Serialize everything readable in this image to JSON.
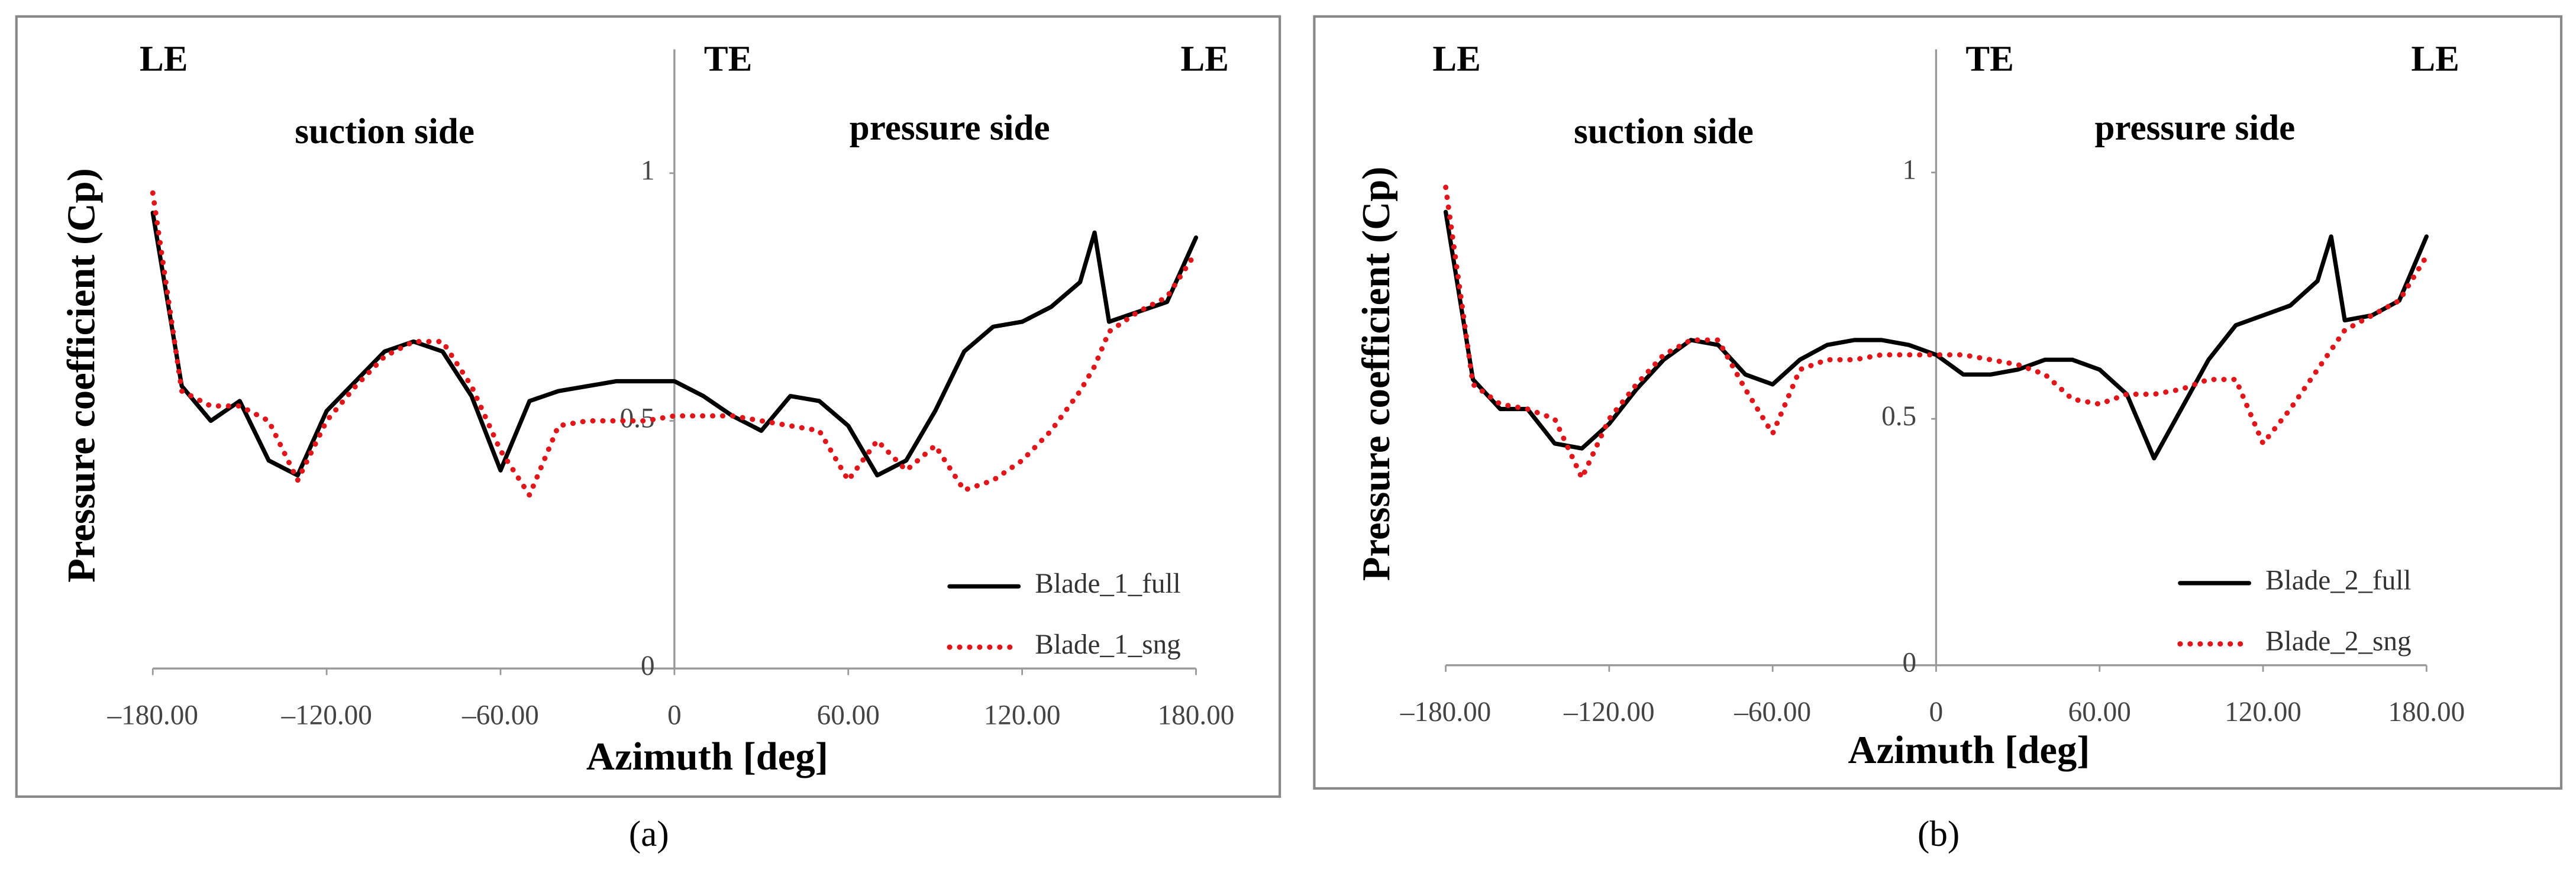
{
  "chart_data": [
    {
      "type": "line",
      "caption": "(a)",
      "x_label": "Azimuth [deg]",
      "y_label": "Pressure coefficient (Cp)",
      "annotations": [
        "LE",
        "TE",
        "LE",
        "suction side",
        "pressure side"
      ],
      "x": [
        -180,
        -170,
        -160,
        -150,
        -140,
        -130,
        -120,
        -110,
        -100,
        -90,
        -80,
        -70,
        -60,
        -50,
        -40,
        -30,
        -20,
        -10,
        0,
        10,
        20,
        30,
        40,
        50,
        60,
        70,
        80,
        90,
        100,
        110,
        120,
        130,
        140,
        145,
        150,
        160,
        170,
        180
      ],
      "series": [
        {
          "name": "Blade_1_full",
          "color": "#000000",
          "line_style": "solid",
          "values": [
            0.92,
            0.57,
            0.5,
            0.54,
            0.42,
            0.39,
            0.52,
            0.58,
            0.64,
            0.66,
            0.64,
            0.55,
            0.4,
            0.54,
            0.56,
            0.57,
            0.58,
            0.58,
            0.58,
            0.55,
            0.51,
            0.48,
            0.55,
            0.54,
            0.49,
            0.39,
            0.42,
            0.52,
            0.64,
            0.69,
            0.7,
            0.73,
            0.78,
            0.88,
            0.7,
            0.72,
            0.74,
            0.87
          ]
        },
        {
          "name": "Blade_1_sng",
          "color": "#e0161a",
          "line_style": "dotted",
          "values": [
            0.96,
            0.56,
            0.53,
            0.53,
            0.5,
            0.38,
            0.5,
            0.57,
            0.63,
            0.66,
            0.66,
            0.57,
            0.44,
            0.35,
            0.49,
            0.5,
            0.5,
            0.5,
            0.51,
            0.51,
            0.51,
            0.5,
            0.49,
            0.48,
            0.38,
            0.46,
            0.4,
            0.45,
            0.36,
            0.38,
            0.42,
            0.48,
            0.56,
            0.61,
            0.68,
            0.72,
            0.75,
            0.84
          ]
        }
      ],
      "xlim": [
        -180,
        180
      ],
      "ylim": [
        0,
        1.25
      ],
      "xticks": [
        {
          "value": -180,
          "label": "–180.00"
        },
        {
          "value": -120,
          "label": "–120.00"
        },
        {
          "value": -60,
          "label": "–60.00"
        },
        0,
        {
          "value": 60,
          "label": "60.00"
        },
        {
          "value": 120,
          "label": "120.00"
        },
        {
          "value": 180,
          "label": "180.00"
        }
      ],
      "yticks": [
        0,
        0.5,
        1
      ],
      "grid": false,
      "legend": "lower right"
    },
    {
      "type": "line",
      "caption": "(b)",
      "x_label": "Azimuth [deg]",
      "y_label": "Pressure coefficient (Cp)",
      "annotations": [
        "LE",
        "TE",
        "LE",
        "suction side",
        "pressure side"
      ],
      "x": [
        -180,
        -170,
        -160,
        -150,
        -140,
        -130,
        -120,
        -110,
        -100,
        -90,
        -80,
        -70,
        -60,
        -50,
        -40,
        -30,
        -20,
        -10,
        0,
        10,
        20,
        30,
        40,
        50,
        60,
        70,
        80,
        90,
        100,
        110,
        120,
        130,
        140,
        145,
        150,
        160,
        170,
        180
      ],
      "series": [
        {
          "name": "Blade_2_full",
          "color": "#000000",
          "line_style": "solid",
          "values": [
            0.92,
            0.58,
            0.52,
            0.52,
            0.45,
            0.44,
            0.49,
            0.56,
            0.62,
            0.66,
            0.65,
            0.59,
            0.57,
            0.62,
            0.65,
            0.66,
            0.66,
            0.65,
            0.63,
            0.59,
            0.59,
            0.6,
            0.62,
            0.62,
            0.6,
            0.55,
            0.42,
            0.52,
            0.62,
            0.69,
            0.71,
            0.73,
            0.78,
            0.87,
            0.7,
            0.71,
            0.74,
            0.87
          ]
        },
        {
          "name": "Blade_2_sng",
          "color": "#e0161a",
          "line_style": "dotted",
          "values": [
            0.97,
            0.57,
            0.53,
            0.52,
            0.5,
            0.38,
            0.5,
            0.57,
            0.63,
            0.66,
            0.66,
            0.56,
            0.47,
            0.6,
            0.62,
            0.62,
            0.63,
            0.63,
            0.63,
            0.63,
            0.62,
            0.61,
            0.59,
            0.54,
            0.53,
            0.55,
            0.55,
            0.56,
            0.58,
            0.58,
            0.45,
            0.52,
            0.6,
            0.64,
            0.68,
            0.71,
            0.74,
            0.83
          ]
        }
      ],
      "xlim": [
        -180,
        180
      ],
      "ylim": [
        0,
        1.25
      ],
      "xticks": [
        {
          "value": -180,
          "label": "–180.00"
        },
        {
          "value": -120,
          "label": "–120.00"
        },
        {
          "value": -60,
          "label": "–60.00"
        },
        0,
        {
          "value": 60,
          "label": "60.00"
        },
        {
          "value": 120,
          "label": "120.00"
        },
        {
          "value": 180,
          "label": "180.00"
        }
      ],
      "yticks": [
        0,
        0.5,
        1
      ],
      "grid": false,
      "legend": "lower right"
    }
  ]
}
